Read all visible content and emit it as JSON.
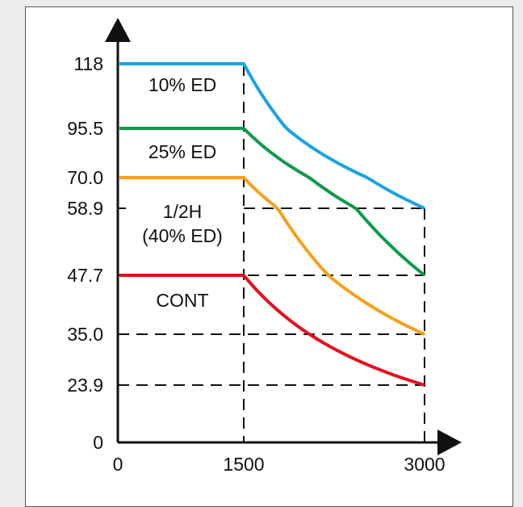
{
  "chart_data": {
    "type": "line",
    "title": "",
    "xlabel": "",
    "ylabel": "",
    "xlim": [
      0,
      3000
    ],
    "ylim": [
      0,
      118
    ],
    "x_ticks": [
      "0",
      "1500",
      "3000"
    ],
    "y_ticks": [
      {
        "value": 118,
        "label": "118"
      },
      {
        "value": 95.5,
        "label": "95.5"
      },
      {
        "value": 70.0,
        "label": "70.0"
      },
      {
        "value": 58.9,
        "label": "58.9"
      },
      {
        "value": 47.7,
        "label": "47.7"
      },
      {
        "value": 35.0,
        "label": "35.0"
      },
      {
        "value": 23.9,
        "label": "23.9"
      },
      {
        "value": 0,
        "label": "0"
      }
    ],
    "series": [
      {
        "name": "10% ED",
        "color": "#1aa3e3",
        "x": [
          0,
          1500,
          3000
        ],
        "y": [
          118,
          118,
          58.9
        ]
      },
      {
        "name": "25% ED",
        "color": "#0f9a4a",
        "x": [
          0,
          1500,
          3000
        ],
        "y": [
          95.5,
          95.5,
          47.7
        ]
      },
      {
        "name": "1/2H\n(40% ED)",
        "color": "#f5a11c",
        "x": [
          0,
          1500,
          3000
        ],
        "y": [
          70.0,
          70.0,
          35.0
        ]
      },
      {
        "name": "CONT",
        "color": "#e3101e",
        "x": [
          0,
          1500,
          3000
        ],
        "y": [
          47.7,
          47.7,
          23.9
        ]
      }
    ],
    "reference_lines": [
      {
        "orientation": "horizontal",
        "y": 58.9
      },
      {
        "orientation": "horizontal",
        "y": 47.7
      },
      {
        "orientation": "horizontal",
        "y": 35.0
      },
      {
        "orientation": "horizontal",
        "y": 23.9
      },
      {
        "orientation": "vertical",
        "x": 1500
      },
      {
        "orientation": "vertical",
        "x": 3000
      }
    ],
    "grid": false,
    "legend": "inline labels"
  }
}
